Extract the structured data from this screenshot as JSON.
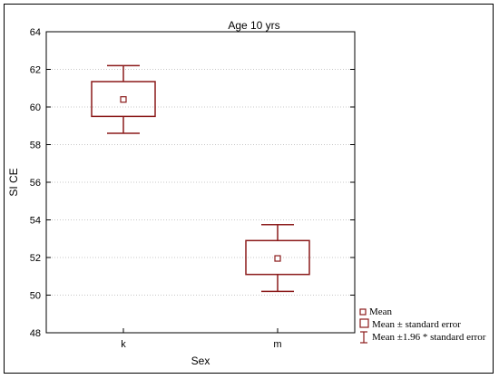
{
  "chart_data": {
    "type": "box",
    "title": "Age 10 yrs",
    "xlabel": "Sex",
    "ylabel": "SI CE",
    "ylim": [
      48,
      64
    ],
    "yticks": [
      48,
      50,
      52,
      54,
      56,
      58,
      60,
      62,
      64
    ],
    "grid": true,
    "categories": [
      "k",
      "m"
    ],
    "groups": [
      {
        "category": "k",
        "mean": 60.4,
        "se_low": 59.5,
        "se_high": 61.35,
        "ci_low": 58.6,
        "ci_high": 62.2
      },
      {
        "category": "m",
        "mean": 51.95,
        "se_low": 51.1,
        "se_high": 52.9,
        "ci_low": 50.2,
        "ci_high": 53.75
      }
    ],
    "legend": {
      "position": "bottom-right",
      "items": [
        "Mean",
        "Mean ± standard error",
        "Mean ±1.96 * standard error"
      ]
    },
    "colors": {
      "series": "#8b1a1a",
      "grid": "#c8c8c8",
      "axis": "#000000"
    }
  }
}
